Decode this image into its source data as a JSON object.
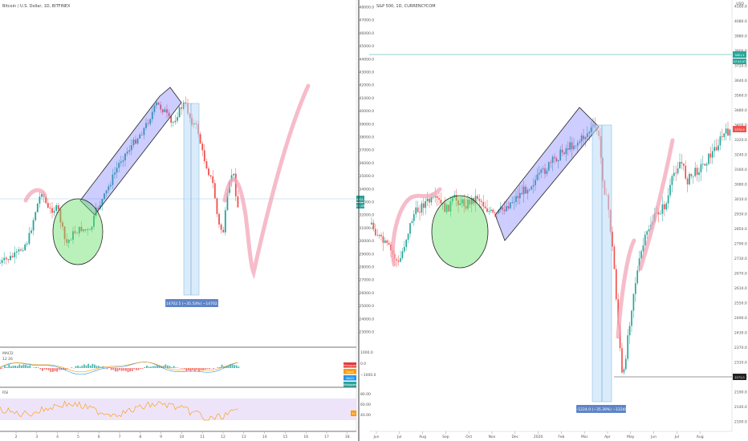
{
  "left_chart": {
    "title": "Bitcoin / U.S. Dollar, 1D, BITFINEX",
    "price_ticks": [
      "48000.0",
      "47000.0",
      "46000.0",
      "45000.0",
      "44000.0",
      "43000.0",
      "42000.0",
      "41000.0",
      "40000.0",
      "39000.0",
      "38000.0",
      "37000.0",
      "36000.0",
      "35000.0",
      "34000.0",
      "33000.0",
      "32000.0",
      "31000.0",
      "30000.0",
      "29000.0",
      "28000.0",
      "27000.0",
      "26000.0",
      "25000.0",
      "24000.0",
      "23000.0"
    ],
    "current_price_label": "34001.0",
    "current_time_label": "02:45",
    "measure_label": "−14702.5 (−35.54%) −14702.5",
    "date_ticks": [
      "2",
      "3",
      "4",
      "5",
      "6",
      "7",
      "8",
      "9",
      "10",
      "11",
      "12",
      "13",
      "14",
      "15",
      "16",
      "17",
      "18"
    ],
    "macd": {
      "name": "MACD",
      "sub": "12 26",
      "ticks": [
        "1000.0",
        "0.0",
        "−1000.0"
      ],
      "badges": [
        "Histogram",
        "Signal",
        "MACD",
        "Histogram"
      ],
      "badge_colors": [
        "#e53935",
        "#ff9800",
        "#2196f3",
        "#26a69a"
      ]
    },
    "rsi": {
      "name": "RSI",
      "ticks": [
        "80.00",
        "60.00",
        "40.00"
      ],
      "badge": "40"
    }
  },
  "right_chart": {
    "title": "S&P 500, 1D, CURRENCYCOM",
    "top_label": "USD",
    "price_ticks": [
      "4160.0",
      "4080.0",
      "3980.0",
      "3800.0",
      "3720.0",
      "3640.0",
      "3560.0",
      "3480.0",
      "3400.0",
      "3320.0",
      "3240.0",
      "3160.0",
      "3080.0",
      "3010.0",
      "2930.0",
      "2850.0",
      "2790.0",
      "2730.0",
      "2670.0",
      "2610.0",
      "2550.0",
      "2490.0",
      "2430.0",
      "2370.0",
      "2310.0",
      "2250.0",
      "2190.0",
      "2140.0",
      "2100.0"
    ],
    "level_label_1": "3801.4",
    "level_label_2": "07:42:47",
    "current_price_label": "3374.9",
    "low_price_label": "2271.0",
    "measure_label": "−1224.0 (−35.39%) −12240",
    "date_ticks": [
      "Jun",
      "Jul",
      "Aug",
      "Sep",
      "Oct",
      "Nov",
      "Dec",
      "2020",
      "Feb",
      "Mar",
      "Apr",
      "May",
      "Jun",
      "Jul",
      "Aug"
    ]
  },
  "chart_data": [
    {
      "type": "line",
      "title": "Bitcoin / U.S. Dollar, 1D, BITFINEX",
      "x": [
        "2",
        "3",
        "4",
        "5",
        "6",
        "7",
        "8",
        "9",
        "10",
        "11",
        "12",
        "13"
      ],
      "series": [
        {
          "values": [
            29500,
            32500,
            31500,
            30500,
            35000,
            37500,
            39500,
            40500,
            39000,
            31500,
            36000,
            34000
          ]
        }
      ],
      "ylim": [
        23000,
        48000
      ]
    },
    {
      "type": "line",
      "title": "S&P 500, 1D, CURRENCYCOM",
      "x": [
        "Jun",
        "Jul",
        "Aug",
        "Sep",
        "Oct",
        "Nov",
        "Dec",
        "2020",
        "Feb",
        "Mar",
        "Apr",
        "May",
        "Jun",
        "Jul",
        "Aug"
      ],
      "series": [
        {
          "values": [
            2830,
            2950,
            2920,
            2960,
            2970,
            3080,
            3150,
            3230,
            3380,
            2450,
            2800,
            2950,
            3100,
            3200,
            3374
          ]
        }
      ],
      "ylim": [
        2100,
        4160
      ]
    }
  ]
}
